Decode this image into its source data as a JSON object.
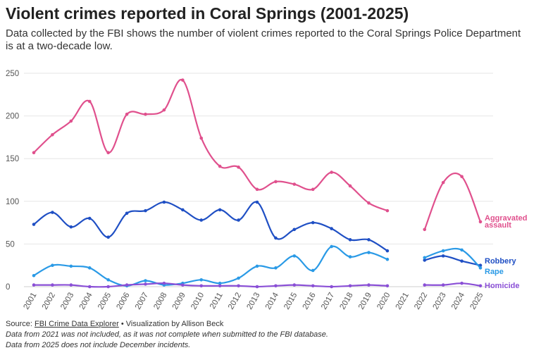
{
  "header": {
    "title": "Violent crimes reported in Coral Springs (2001-2025)",
    "subtitle": "Data collected by the FBI shows the number of violent crimes reported to the Coral Springs Police Department is at a two-decade low."
  },
  "footer": {
    "source_prefix": "Source:",
    "source_link": "FBI Crime Data Explorer",
    "credit": "• Visualization by Allison Beck",
    "note_1": "Data from 2021 was not included, as it was not complete when submitted to the FBI database.",
    "note_2": "Data from 2025 does not include December incidents."
  },
  "colors": {
    "aggravated_assault": "#e0508d",
    "robbery": "#1f4fc4",
    "rape": "#2a9ae6",
    "homicide": "#8a4fd6",
    "grid": "#e6e6e6",
    "tick_text": "#555555"
  },
  "chart_data": {
    "type": "line",
    "title": "Violent crimes reported in Coral Springs (2001-2025)",
    "x": [
      "2001",
      "2002",
      "2003",
      "2004",
      "2005",
      "2006",
      "2007",
      "2008",
      "2009",
      "2010",
      "2011",
      "2012",
      "2013",
      "2014",
      "2015",
      "2016",
      "2017",
      "2018",
      "2019",
      "2020",
      "2021",
      "2022",
      "2023",
      "2024",
      "2025"
    ],
    "ylim": [
      0,
      250
    ],
    "yticks": [
      0,
      50,
      100,
      150,
      200,
      250
    ],
    "grid": true,
    "legend": "labels at line ends (right)",
    "series": [
      {
        "name": "Aggravated assault",
        "label_lines": [
          "Aggravated",
          "assault"
        ],
        "color_key": "aggravated_assault",
        "values": [
          157,
          178,
          194,
          217,
          157,
          202,
          202,
          207,
          242,
          174,
          141,
          140,
          114,
          123,
          120,
          114,
          134,
          118,
          98,
          89,
          null,
          67,
          122,
          129,
          76
        ]
      },
      {
        "name": "Robbery",
        "label_lines": [
          "Robbery"
        ],
        "color_key": "robbery",
        "values": [
          73,
          87,
          70,
          80,
          58,
          86,
          89,
          99,
          90,
          78,
          90,
          78,
          99,
          57,
          67,
          75,
          68,
          55,
          55,
          42,
          null,
          31,
          36,
          30,
          25
        ]
      },
      {
        "name": "Rape",
        "label_lines": [
          "Rape"
        ],
        "color_key": "rape",
        "values": [
          13,
          25,
          24,
          22,
          8,
          1,
          7,
          2,
          4,
          8,
          4,
          10,
          24,
          22,
          36,
          19,
          47,
          35,
          40,
          32,
          null,
          34,
          42,
          43,
          22
        ]
      },
      {
        "name": "Homicide",
        "label_lines": [
          "Homicide"
        ],
        "color_key": "homicide",
        "values": [
          2,
          2,
          2,
          0,
          0,
          2,
          3,
          4,
          2,
          1,
          1,
          1,
          0,
          1,
          2,
          1,
          0,
          1,
          2,
          1,
          null,
          2,
          2,
          4,
          1
        ]
      }
    ]
  }
}
